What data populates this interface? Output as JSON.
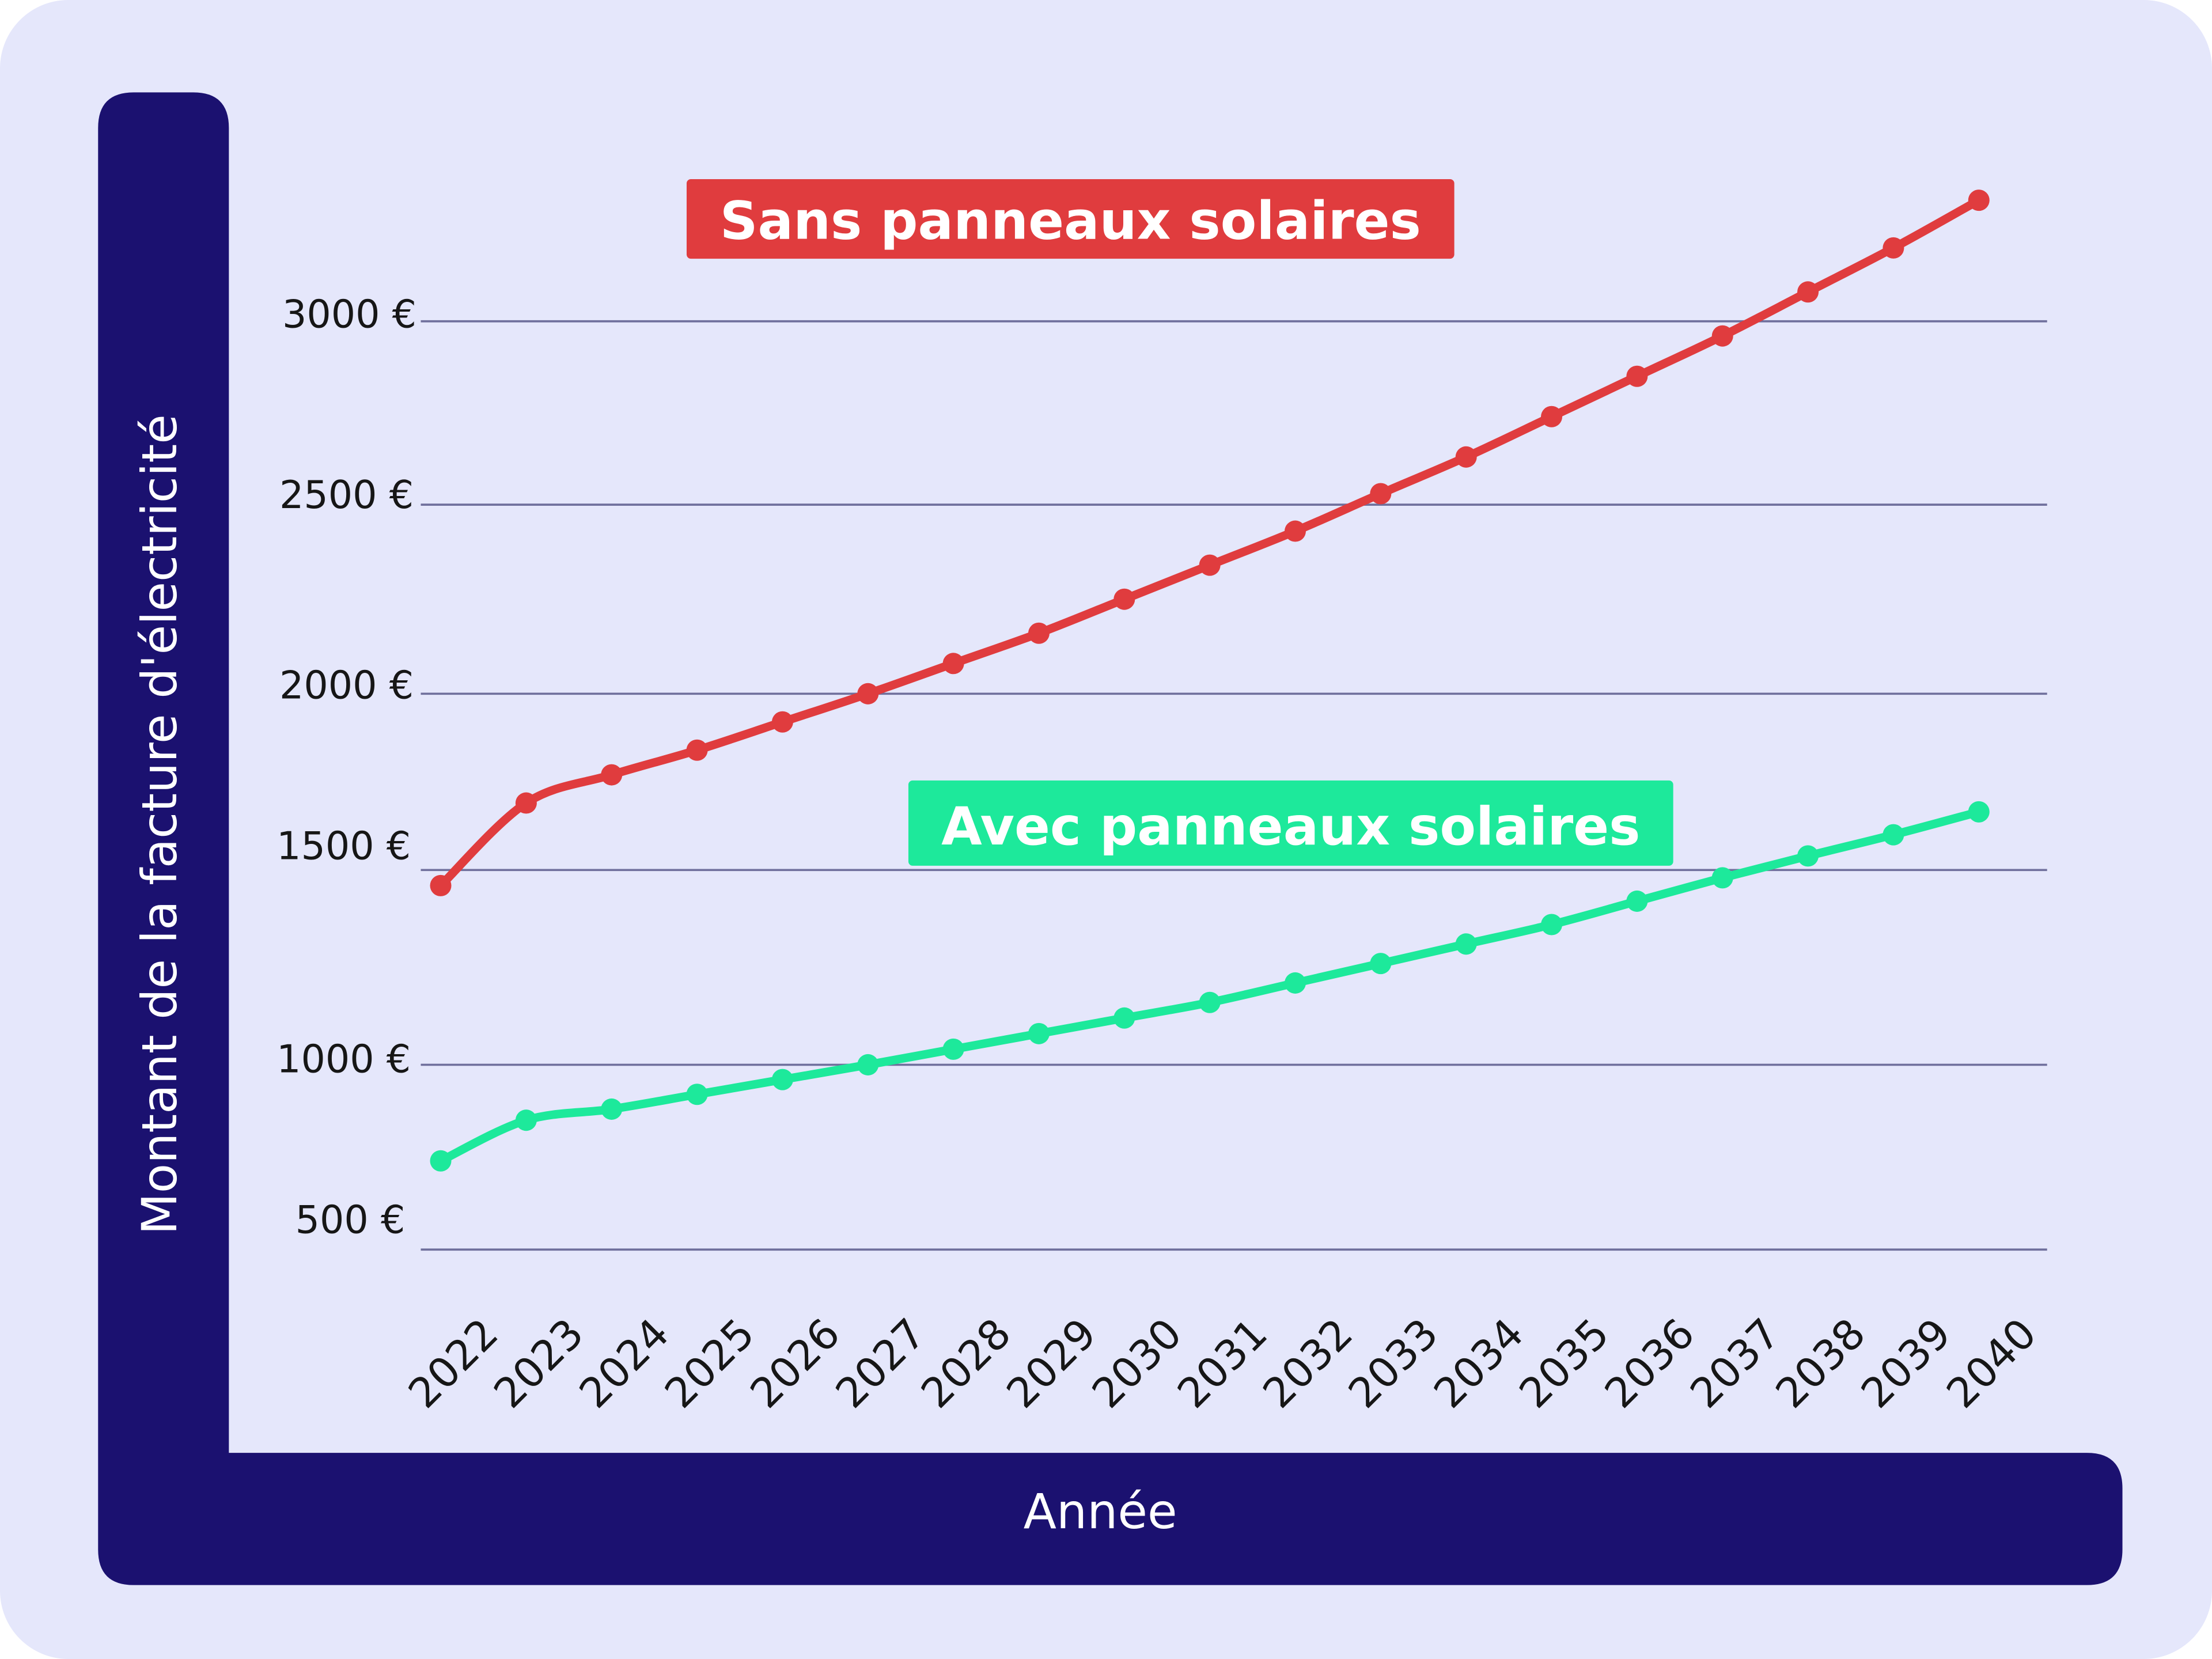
{
  "chart_data": {
    "type": "line",
    "title": "",
    "xlabel": "Année",
    "ylabel": "Montant de la facture d'électricité",
    "y_tick_labels": [
      "500 €",
      "1000 €",
      "1500 €",
      "2000 €",
      "2500 €",
      "3000 €"
    ],
    "categories": [
      "2022",
      "2023",
      "2024",
      "2025",
      "2026",
      "2027",
      "2028",
      "2029",
      "2030",
      "2031",
      "2032",
      "2033",
      "2034",
      "2035",
      "2036",
      "2037",
      "2038",
      "2039",
      "2040"
    ],
    "grid": true,
    "series": [
      {
        "name": "Sans panneaux solaires",
        "color": "#e03c3e",
        "values": [
          1460,
          1690,
          1770,
          1840,
          1920,
          2000,
          2080,
          2160,
          2250,
          2340,
          2430,
          2530,
          2630,
          2740,
          2850,
          2960,
          3080,
          3200,
          3330
        ]
      },
      {
        "name": "Avec panneaux solaires",
        "color": "#1de99b",
        "values": [
          740,
          850,
          880,
          920,
          960,
          1000,
          1040,
          1080,
          1120,
          1160,
          1210,
          1260,
          1310,
          1360,
          1420,
          1480,
          1540,
          1600,
          1665
        ]
      }
    ],
    "colors": {
      "background": "#e5e7fb",
      "axis_band": "#1b1170",
      "gridline": "#6f6f9c"
    }
  }
}
